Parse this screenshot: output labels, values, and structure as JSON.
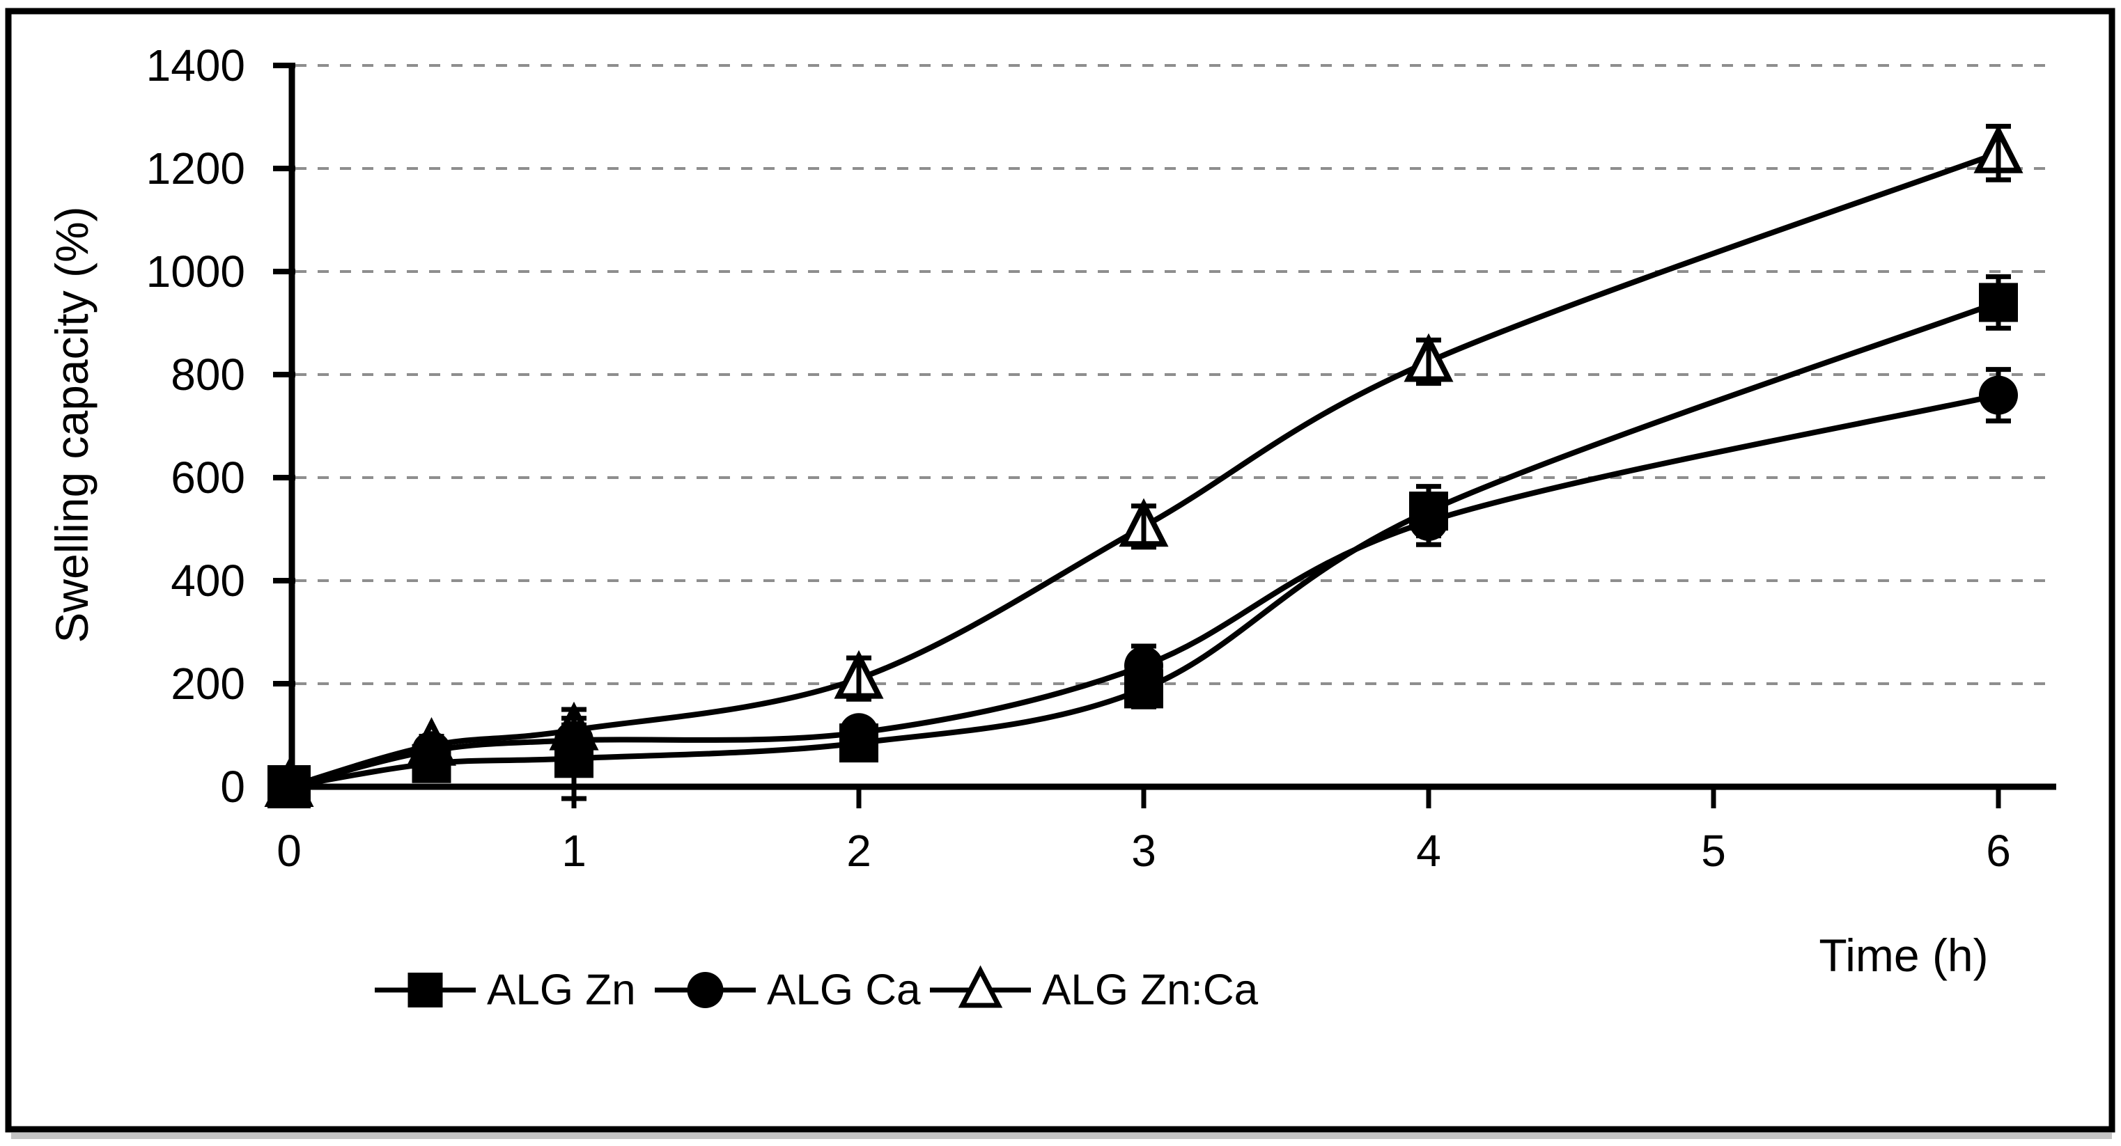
{
  "figure": {
    "background": "#ffffff",
    "border_color": "#000000",
    "shadow_color": "#c4c4c4",
    "line_color": "#000000",
    "grid_color": "#8e8e8e"
  },
  "chart_data": {
    "type": "line",
    "title": "",
    "xlabel": "Time (h)",
    "ylabel": "Swelling capacity (%)",
    "x": [
      0,
      0.5,
      1,
      2,
      3,
      4,
      6
    ],
    "xlim": [
      0,
      6
    ],
    "ylim": [
      0,
      1400
    ],
    "x_tick_values": [
      0,
      1,
      2,
      3,
      4,
      5,
      6
    ],
    "x_tick_labels": [
      "0",
      "1",
      "2",
      "3",
      "4",
      "5",
      "6"
    ],
    "y_tick_values": [
      0,
      200,
      400,
      600,
      800,
      1000,
      1200,
      1400
    ],
    "y_tick_labels": [
      "0",
      "200",
      "400",
      "600",
      "800",
      "1000",
      "1200",
      "1400"
    ],
    "grid": "horizontal-dashed",
    "legend_position": "bottom-left",
    "series": [
      {
        "name": "ALG Zn",
        "marker": "filled-square",
        "values": [
          0,
          45,
          55,
          85,
          190,
          535,
          940
        ],
        "errors": [
          0,
          25,
          78,
          22,
          35,
          48,
          50
        ]
      },
      {
        "name": "ALG Ca",
        "marker": "filled-circle",
        "values": [
          0,
          70,
          90,
          105,
          235,
          515,
          760
        ],
        "errors": [
          0,
          18,
          30,
          20,
          38,
          45,
          50
        ]
      },
      {
        "name": "ALG Zn:Ca",
        "marker": "open-triangle",
        "values": [
          0,
          80,
          110,
          210,
          505,
          825,
          1230
        ],
        "errors": [
          0,
          18,
          40,
          40,
          40,
          42,
          52
        ]
      }
    ]
  }
}
